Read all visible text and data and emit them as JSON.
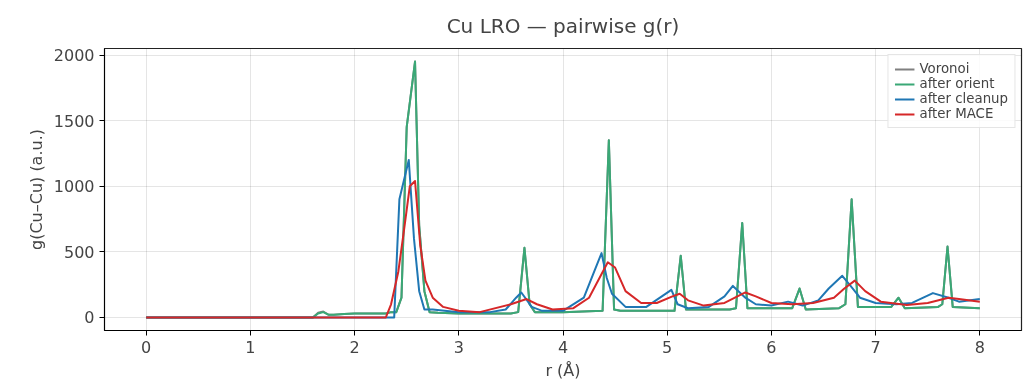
{
  "chart_data": {
    "type": "line",
    "title": "Cu LRO — pairwise g(r)",
    "xlabel": "r (Å)",
    "ylabel": "g(Cu–Cu) (a.u.)",
    "xlim": [
      -0.4,
      8.4
    ],
    "ylim": [
      -100,
      2050
    ],
    "xticks": [
      0,
      1,
      2,
      3,
      4,
      5,
      6,
      7,
      8
    ],
    "yticks": [
      0,
      500,
      1000,
      1500,
      2000
    ],
    "grid": true,
    "legend": "top right",
    "line_style": "solid",
    "marker": "none",
    "series": [
      {
        "name": "Voronoi",
        "color": "#808080",
        "x": [
          0,
          1.6,
          1.65,
          1.7,
          1.75,
          1.8,
          1.9,
          2.0,
          2.2,
          2.3,
          2.35,
          2.4,
          2.45,
          2.5,
          2.58,
          2.62,
          2.67,
          2.72,
          2.8,
          3.0,
          3.5,
          3.57,
          3.63,
          3.68,
          3.73,
          4.0,
          4.38,
          4.44,
          4.49,
          4.55,
          5.07,
          5.13,
          5.18,
          5.6,
          5.66,
          5.72,
          5.77,
          6.2,
          6.27,
          6.33,
          6.65,
          6.71,
          6.77,
          6.83,
          7.15,
          7.22,
          7.28,
          7.6,
          7.64,
          7.69,
          7.74,
          8.0
        ],
        "values": [
          0,
          0,
          35,
          45,
          20,
          20,
          25,
          30,
          30,
          30,
          40,
          40,
          150,
          1450,
          1950,
          700,
          200,
          40,
          35,
          30,
          30,
          40,
          530,
          100,
          40,
          40,
          50,
          1350,
          60,
          50,
          50,
          470,
          60,
          60,
          70,
          720,
          70,
          70,
          220,
          60,
          70,
          100,
          900,
          80,
          80,
          150,
          70,
          80,
          100,
          540,
          80,
          70
        ]
      },
      {
        "name": "after orient",
        "color": "#3aa876",
        "x": [
          0,
          1.6,
          1.65,
          1.7,
          1.75,
          1.8,
          1.9,
          2.0,
          2.2,
          2.3,
          2.35,
          2.4,
          2.45,
          2.5,
          2.58,
          2.62,
          2.67,
          2.72,
          2.8,
          3.0,
          3.5,
          3.57,
          3.63,
          3.68,
          3.73,
          4.0,
          4.38,
          4.44,
          4.49,
          4.55,
          5.07,
          5.13,
          5.18,
          5.6,
          5.66,
          5.72,
          5.77,
          6.2,
          6.27,
          6.33,
          6.65,
          6.71,
          6.77,
          6.83,
          7.15,
          7.22,
          7.28,
          7.6,
          7.64,
          7.69,
          7.74,
          8.0
        ],
        "values": [
          0,
          0,
          30,
          40,
          20,
          20,
          25,
          30,
          30,
          30,
          40,
          40,
          150,
          1450,
          1950,
          700,
          200,
          40,
          35,
          30,
          30,
          40,
          530,
          100,
          40,
          40,
          50,
          1350,
          60,
          50,
          50,
          470,
          60,
          60,
          70,
          720,
          70,
          70,
          220,
          60,
          70,
          100,
          900,
          80,
          80,
          150,
          70,
          80,
          100,
          540,
          80,
          70
        ]
      },
      {
        "name": "after cleanup",
        "color": "#1f77b4",
        "x": [
          0,
          2.38,
          2.43,
          2.52,
          2.57,
          2.62,
          2.67,
          2.75,
          3.0,
          3.3,
          3.45,
          3.55,
          3.6,
          3.7,
          3.8,
          4.0,
          4.2,
          4.3,
          4.37,
          4.42,
          4.47,
          4.6,
          4.8,
          5.04,
          5.1,
          5.2,
          5.4,
          5.55,
          5.63,
          5.75,
          5.85,
          6.0,
          6.16,
          6.3,
          6.45,
          6.55,
          6.68,
          6.75,
          6.85,
          7.0,
          7.2,
          7.35,
          7.55,
          7.7,
          7.8,
          8.0
        ],
        "values": [
          0,
          0,
          900,
          1200,
          600,
          200,
          60,
          60,
          40,
          40,
          60,
          150,
          190,
          80,
          50,
          50,
          150,
          350,
          490,
          300,
          180,
          80,
          80,
          210,
          100,
          70,
          80,
          160,
          240,
          150,
          100,
          90,
          120,
          90,
          130,
          220,
          317,
          250,
          150,
          110,
          100,
          110,
          185,
          150,
          120,
          140
        ]
      },
      {
        "name": "after MACE",
        "color": "#d62728",
        "x": [
          0,
          2.3,
          2.35,
          2.42,
          2.48,
          2.53,
          2.58,
          2.63,
          2.68,
          2.75,
          2.85,
          3.0,
          3.2,
          3.5,
          3.65,
          3.75,
          3.9,
          4.1,
          4.25,
          4.35,
          4.43,
          4.5,
          4.6,
          4.75,
          4.9,
          5.05,
          5.12,
          5.2,
          5.35,
          5.55,
          5.65,
          5.75,
          5.85,
          6.0,
          6.2,
          6.4,
          6.6,
          6.7,
          6.8,
          6.9,
          7.05,
          7.3,
          7.5,
          7.7,
          7.8,
          8.0
        ],
        "values": [
          0,
          0,
          100,
          350,
          700,
          1000,
          1040,
          550,
          280,
          150,
          80,
          50,
          40,
          100,
          140,
          100,
          60,
          70,
          150,
          300,
          420,
          380,
          200,
          110,
          110,
          160,
          180,
          130,
          90,
          110,
          150,
          190,
          160,
          110,
          100,
          110,
          150,
          220,
          280,
          200,
          120,
          95,
          110,
          150,
          140,
          120
        ]
      }
    ]
  }
}
